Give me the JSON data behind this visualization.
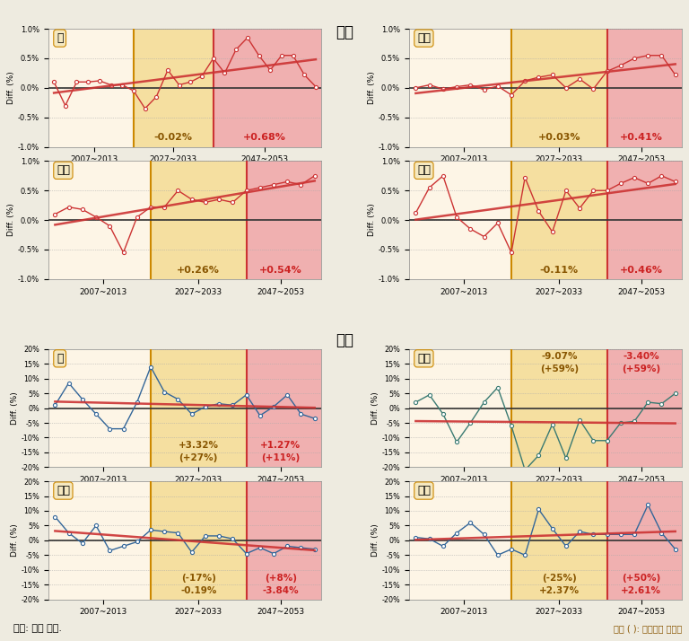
{
  "title_top": "기온",
  "title_bottom": "풍속",
  "footer_left": "자료: 저자 작성.",
  "footer_right": "괄호 ( ): 전체일수 증감율",
  "bg_color": "#eeebe0",
  "zone1_color": "#f5dfa0",
  "zone2_color": "#f0b0b0",
  "zone_border_color": "#cc8800",
  "zone2_border_color": "#cc3333",
  "temp_data": {
    "spring": [
      0.1,
      -0.3,
      0.1,
      0.1,
      0.12,
      0.05,
      0.05,
      -0.05,
      -0.35,
      -0.15,
      0.3,
      0.05,
      0.1,
      0.2,
      0.5,
      0.25,
      0.65,
      0.85,
      0.55,
      0.3,
      0.55,
      0.55,
      0.22,
      0.02
    ],
    "summer": [
      0.0,
      0.05,
      -0.02,
      0.02,
      0.05,
      -0.03,
      0.03,
      -0.12,
      0.12,
      0.18,
      0.22,
      0.0,
      0.15,
      -0.02,
      0.28,
      0.38,
      0.5,
      0.55,
      0.55,
      0.22
    ],
    "autumn": [
      0.1,
      0.22,
      0.18,
      0.05,
      -0.1,
      -0.55,
      0.05,
      0.22,
      0.22,
      0.5,
      0.35,
      0.3,
      0.35,
      0.3,
      0.5,
      0.55,
      0.6,
      0.65,
      0.6,
      0.75
    ],
    "winter": [
      0.12,
      0.55,
      0.75,
      0.05,
      -0.15,
      -0.28,
      -0.05,
      -0.55,
      0.72,
      0.15,
      -0.2,
      0.5,
      0.2,
      0.5,
      0.5,
      0.62,
      0.72,
      0.62,
      0.75,
      0.65
    ]
  },
  "temp_annotations": {
    "spring": [
      "-0.02%",
      "+0.68%"
    ],
    "summer": [
      "+0.03%",
      "+0.41%"
    ],
    "autumn": [
      "+0.26%",
      "+0.54%"
    ],
    "winter": [
      "-0.11%",
      "+0.46%"
    ]
  },
  "wind_data": {
    "spring": [
      1.0,
      8.5,
      3.0,
      -2.0,
      -7.0,
      -7.0,
      2.0,
      14.0,
      5.5,
      3.0,
      -2.0,
      0.5,
      1.5,
      1.0,
      4.5,
      -2.5,
      0.5,
      4.5,
      -2.0,
      -3.5
    ],
    "summer": [
      2.0,
      4.5,
      -2.0,
      -11.5,
      -5.0,
      2.0,
      7.0,
      -6.0,
      -21.0,
      -16.0,
      -5.5,
      -17.0,
      -4.0,
      -11.0,
      -11.0,
      -5.0,
      -4.5,
      2.0,
      1.5,
      5.0
    ],
    "autumn": [
      8.0,
      2.5,
      -1.0,
      5.0,
      -3.5,
      -2.0,
      -0.5,
      3.5,
      3.0,
      2.5,
      -4.0,
      1.5,
      1.5,
      0.5,
      -4.5,
      -2.5,
      -4.5,
      -2.0,
      -2.5,
      -3.0
    ],
    "winter": [
      1.0,
      0.5,
      -2.0,
      2.5,
      6.0,
      2.0,
      -5.0,
      -3.0,
      -5.0,
      10.5,
      4.0,
      -2.0,
      3.0,
      2.0,
      2.0,
      2.0,
      2.0,
      12.0,
      2.5,
      -3.0
    ]
  },
  "wind_annotations": {
    "spring": [
      "+3.32%",
      "(+27%)",
      "+1.27%",
      "(+11%)"
    ],
    "summer": [
      "-9.07%",
      "(+59%)",
      "-3.40%",
      "(+59%)"
    ],
    "autumn": [
      "(-17%)",
      "-0.19%",
      "(+8%)",
      "-3.84%"
    ],
    "winter": [
      "(-25%)",
      "+2.37%",
      "(+50%)",
      "+2.61%"
    ]
  },
  "wind_ann_at_top": {
    "spring": false,
    "summer": true,
    "autumn": false,
    "winter": false
  },
  "line_color_temp": "#cc3333",
  "trend_color": "#cc3333",
  "wind_line_colors": [
    "#336699",
    "#3a7a72",
    "#336699",
    "#336699"
  ]
}
